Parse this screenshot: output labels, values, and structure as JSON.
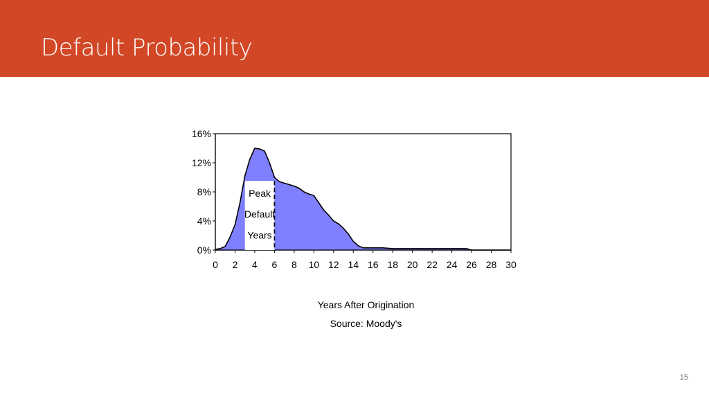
{
  "slide": {
    "title": "Default Probability",
    "page_number": "15",
    "header_color": "#d24726",
    "title_color": "#ffffff"
  },
  "chart_data": {
    "type": "area",
    "title": "",
    "xlabel": "Years After Origination",
    "source": "Source: Moody's",
    "ylabel": "",
    "xlim": [
      0,
      30
    ],
    "ylim": [
      0,
      16
    ],
    "x_ticks": [
      0,
      2,
      4,
      6,
      8,
      10,
      12,
      14,
      16,
      18,
      20,
      22,
      24,
      26,
      28,
      30
    ],
    "y_ticks": [
      0,
      4,
      8,
      12,
      16
    ],
    "y_tick_labels": [
      "0%",
      "4%",
      "8%",
      "12%",
      "16%"
    ],
    "fill_color": "#8080ff",
    "line_color": "#000000",
    "series": [
      {
        "x": [
          0,
          0.5,
          1,
          1.5,
          2,
          2.5,
          3,
          3.5,
          4,
          4.5,
          5,
          5.5,
          6,
          6.5,
          7,
          7.5,
          8,
          8.5,
          9,
          9.5,
          10,
          10.5,
          11,
          11.5,
          12,
          12.5,
          13,
          13.5,
          14,
          14.5,
          15,
          16,
          17,
          18,
          20,
          22,
          24,
          25.5,
          26,
          28,
          30
        ],
        "y": [
          0.1,
          0.2,
          0.5,
          1.8,
          3.5,
          6.5,
          10.2,
          12.5,
          14.0,
          13.9,
          13.6,
          12.0,
          10.0,
          9.4,
          9.2,
          9.0,
          8.8,
          8.5,
          8.0,
          7.7,
          7.5,
          6.5,
          5.5,
          4.8,
          4.0,
          3.6,
          3.0,
          2.2,
          1.2,
          0.6,
          0.3,
          0.3,
          0.3,
          0.2,
          0.2,
          0.2,
          0.2,
          0.2,
          0,
          0,
          0
        ]
      }
    ],
    "annotation": {
      "lines": [
        "Peak",
        "Default",
        "Years"
      ],
      "x_range": [
        3,
        6
      ],
      "y_top": 9.5
    }
  }
}
